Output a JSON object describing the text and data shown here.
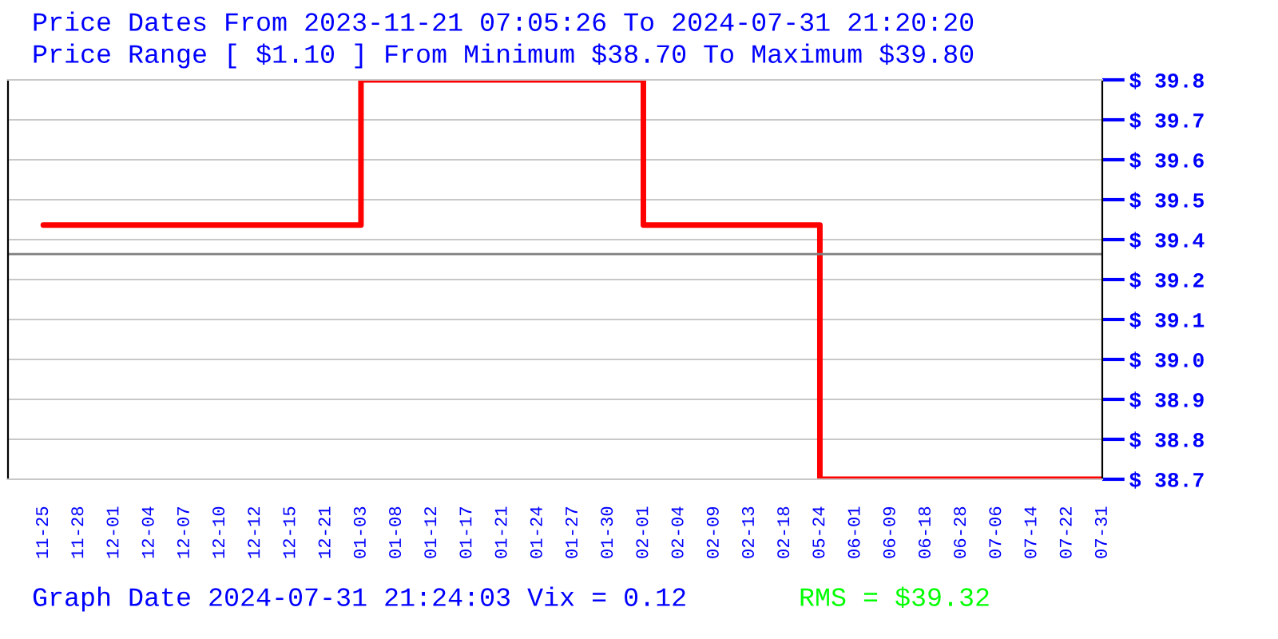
{
  "chart_data": {
    "type": "step",
    "title": "Price Dates From 2023-11-21 07:05:26 To 2024-07-31 21:20:20",
    "subtitle": "Price Range [ $1.10 ] From Minimum $38.70 To Maximum $39.80",
    "annotations": [
      "Graph Date 2024-07-31 21:24:03 Vix = 0.12",
      "RMS = $39.32"
    ],
    "categories": [
      "11-25",
      "11-28",
      "12-01",
      "12-04",
      "12-07",
      "12-10",
      "12-12",
      "12-15",
      "12-21",
      "01-03",
      "01-08",
      "01-12",
      "01-17",
      "01-21",
      "01-24",
      "01-27",
      "01-30",
      "02-01",
      "02-04",
      "02-09",
      "02-13",
      "02-18",
      "05-24",
      "06-01",
      "06-09",
      "06-18",
      "06-28",
      "07-06",
      "07-14",
      "07-22",
      "07-31"
    ],
    "series": [
      {
        "color": "#ff0000",
        "values": [
          39.4,
          39.4,
          39.4,
          39.4,
          39.4,
          39.4,
          39.4,
          39.4,
          39.4,
          39.8,
          39.8,
          39.8,
          39.8,
          39.8,
          39.8,
          39.8,
          39.8,
          39.4,
          39.4,
          39.4,
          39.4,
          39.4,
          38.7,
          38.7,
          38.7,
          38.7,
          38.7,
          38.7,
          38.7,
          38.7,
          38.7
        ]
      }
    ],
    "ylim": [
      38.7,
      39.8
    ],
    "yticks": [
      {
        "value": 38.7,
        "label": "$ 38.7"
      },
      {
        "value": 38.81,
        "label": "$ 38.8"
      },
      {
        "value": 38.92,
        "label": "$ 38.9"
      },
      {
        "value": 39.03,
        "label": "$ 39.0"
      },
      {
        "value": 39.14,
        "label": "$ 39.1"
      },
      {
        "value": 39.25,
        "label": "$ 39.2"
      },
      {
        "value": 39.36,
        "label": "$ 39.4"
      },
      {
        "value": 39.47,
        "label": "$ 39.5"
      },
      {
        "value": 39.58,
        "label": "$ 39.6"
      },
      {
        "value": 39.69,
        "label": "$ 39.7"
      },
      {
        "value": 39.8,
        "label": "$ 39.8"
      }
    ],
    "ref_lines": [
      {
        "axis": "y",
        "value": 39.32,
        "color": "#808080"
      }
    ],
    "grid": "y",
    "legend": false
  }
}
